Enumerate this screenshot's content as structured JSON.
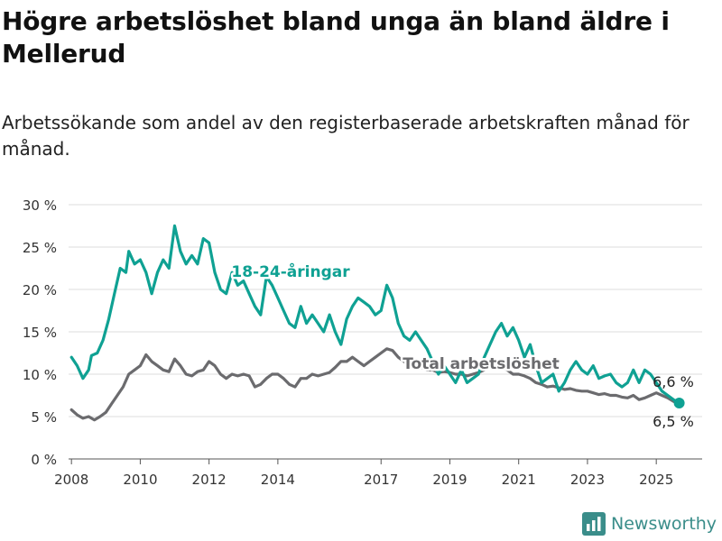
{
  "title": "Högre arbetslöshet bland unga än bland äldre i Mellerud",
  "subtitle": "Arbetssökande som andel av den registerbaserade arbetskraften månad för månad.",
  "brand": {
    "name": "Newsworthy",
    "logo_icon": "bar-chart-icon"
  },
  "colors": {
    "youth": "#0fa193",
    "total": "#6b6b6e",
    "grid": "#dcdcdc",
    "text": "#333333"
  },
  "chart_data": {
    "type": "line",
    "y_unit": "%",
    "ylim": [
      0,
      30
    ],
    "y_ticks": [
      0,
      5,
      10,
      15,
      20,
      25,
      30
    ],
    "y_tick_labels": [
      "0 %",
      "5 %",
      "10 %",
      "15 %",
      "20 %",
      "25 %",
      "30 %"
    ],
    "x_tick_labels": [
      "2008",
      "2010",
      "2012",
      "2014",
      "2017",
      "2019",
      "2021",
      "2023",
      "2025"
    ],
    "grid": true,
    "series": [
      {
        "name": "18-24-åringar",
        "last_value_label": "6,6 %",
        "points": [
          [
            "2008-01",
            12.0
          ],
          [
            "2008-03",
            11.0
          ],
          [
            "2008-05",
            9.5
          ],
          [
            "2008-07",
            10.5
          ],
          [
            "2008-08",
            12.2
          ],
          [
            "2008-10",
            12.5
          ],
          [
            "2008-12",
            14.0
          ],
          [
            "2009-02",
            16.5
          ],
          [
            "2009-04",
            19.5
          ],
          [
            "2009-06",
            22.5
          ],
          [
            "2009-08",
            22.0
          ],
          [
            "2009-09",
            24.5
          ],
          [
            "2009-11",
            23.0
          ],
          [
            "2010-01",
            23.5
          ],
          [
            "2010-03",
            22.0
          ],
          [
            "2010-05",
            19.5
          ],
          [
            "2010-07",
            22.0
          ],
          [
            "2010-09",
            23.5
          ],
          [
            "2010-11",
            22.5
          ],
          [
            "2011-01",
            27.5
          ],
          [
            "2011-03",
            24.5
          ],
          [
            "2011-05",
            23.0
          ],
          [
            "2011-07",
            24.0
          ],
          [
            "2011-09",
            23.0
          ],
          [
            "2011-11",
            26.0
          ],
          [
            "2012-01",
            25.5
          ],
          [
            "2012-03",
            22.0
          ],
          [
            "2012-05",
            20.0
          ],
          [
            "2012-07",
            19.5
          ],
          [
            "2012-09",
            22.0
          ],
          [
            "2012-11",
            20.5
          ],
          [
            "2013-01",
            21.0
          ],
          [
            "2013-03",
            19.5
          ],
          [
            "2013-05",
            18.0
          ],
          [
            "2013-07",
            17.0
          ],
          [
            "2013-09",
            21.5
          ],
          [
            "2013-11",
            20.5
          ],
          [
            "2014-01",
            19.0
          ],
          [
            "2014-03",
            17.5
          ],
          [
            "2014-05",
            16.0
          ],
          [
            "2014-07",
            15.5
          ],
          [
            "2014-09",
            18.0
          ],
          [
            "2014-11",
            16.0
          ],
          [
            "2015-01",
            17.0
          ],
          [
            "2015-03",
            16.0
          ],
          [
            "2015-05",
            15.0
          ],
          [
            "2015-07",
            17.0
          ],
          [
            "2015-09",
            15.0
          ],
          [
            "2015-11",
            13.5
          ],
          [
            "2016-01",
            16.5
          ],
          [
            "2016-03",
            18.0
          ],
          [
            "2016-05",
            19.0
          ],
          [
            "2016-07",
            18.5
          ],
          [
            "2016-09",
            18.0
          ],
          [
            "2016-11",
            17.0
          ],
          [
            "2017-01",
            17.5
          ],
          [
            "2017-03",
            20.5
          ],
          [
            "2017-05",
            19.0
          ],
          [
            "2017-07",
            16.0
          ],
          [
            "2017-09",
            14.5
          ],
          [
            "2017-11",
            14.0
          ],
          [
            "2018-01",
            15.0
          ],
          [
            "2018-03",
            14.0
          ],
          [
            "2018-05",
            13.0
          ],
          [
            "2018-07",
            11.5
          ],
          [
            "2018-09",
            10.0
          ],
          [
            "2018-11",
            11.0
          ],
          [
            "2019-01",
            10.0
          ],
          [
            "2019-03",
            9.0
          ],
          [
            "2019-05",
            10.5
          ],
          [
            "2019-07",
            9.0
          ],
          [
            "2019-09",
            9.5
          ],
          [
            "2019-11",
            10.0
          ],
          [
            "2020-01",
            12.0
          ],
          [
            "2020-03",
            13.5
          ],
          [
            "2020-05",
            15.0
          ],
          [
            "2020-07",
            16.0
          ],
          [
            "2020-09",
            14.5
          ],
          [
            "2020-11",
            15.5
          ],
          [
            "2021-01",
            14.0
          ],
          [
            "2021-03",
            12.0
          ],
          [
            "2021-05",
            13.5
          ],
          [
            "2021-07",
            11.0
          ],
          [
            "2021-09",
            9.0
          ],
          [
            "2021-11",
            9.5
          ],
          [
            "2022-01",
            10.0
          ],
          [
            "2022-03",
            8.0
          ],
          [
            "2022-05",
            9.0
          ],
          [
            "2022-07",
            10.5
          ],
          [
            "2022-09",
            11.5
          ],
          [
            "2022-11",
            10.5
          ],
          [
            "2023-01",
            10.0
          ],
          [
            "2023-03",
            11.0
          ],
          [
            "2023-05",
            9.5
          ],
          [
            "2023-07",
            9.8
          ],
          [
            "2023-09",
            10.0
          ],
          [
            "2023-11",
            9.0
          ],
          [
            "2024-01",
            8.5
          ],
          [
            "2024-03",
            9.0
          ],
          [
            "2024-05",
            10.5
          ],
          [
            "2024-07",
            9.0
          ],
          [
            "2024-09",
            10.5
          ],
          [
            "2024-11",
            10.0
          ],
          [
            "2025-01",
            9.0
          ],
          [
            "2025-03",
            8.0
          ],
          [
            "2025-05",
            7.5
          ],
          [
            "2025-07",
            7.0
          ],
          [
            "2025-09",
            6.6
          ]
        ]
      },
      {
        "name": "Total arbetslöshet",
        "last_value_label": "6,5 %",
        "points": [
          [
            "2008-01",
            5.8
          ],
          [
            "2008-03",
            5.2
          ],
          [
            "2008-05",
            4.8
          ],
          [
            "2008-07",
            5.0
          ],
          [
            "2008-09",
            4.6
          ],
          [
            "2008-11",
            5.0
          ],
          [
            "2009-01",
            5.5
          ],
          [
            "2009-03",
            6.5
          ],
          [
            "2009-05",
            7.5
          ],
          [
            "2009-07",
            8.5
          ],
          [
            "2009-09",
            10.0
          ],
          [
            "2009-11",
            10.5
          ],
          [
            "2010-01",
            11.0
          ],
          [
            "2010-03",
            12.3
          ],
          [
            "2010-05",
            11.5
          ],
          [
            "2010-07",
            11.0
          ],
          [
            "2010-09",
            10.5
          ],
          [
            "2010-11",
            10.3
          ],
          [
            "2011-01",
            11.8
          ],
          [
            "2011-03",
            11.0
          ],
          [
            "2011-05",
            10.0
          ],
          [
            "2011-07",
            9.8
          ],
          [
            "2011-09",
            10.3
          ],
          [
            "2011-11",
            10.5
          ],
          [
            "2012-01",
            11.5
          ],
          [
            "2012-03",
            11.0
          ],
          [
            "2012-05",
            10.0
          ],
          [
            "2012-07",
            9.5
          ],
          [
            "2012-09",
            10.0
          ],
          [
            "2012-11",
            9.8
          ],
          [
            "2013-01",
            10.0
          ],
          [
            "2013-03",
            9.8
          ],
          [
            "2013-05",
            8.5
          ],
          [
            "2013-07",
            8.8
          ],
          [
            "2013-09",
            9.5
          ],
          [
            "2013-11",
            10.0
          ],
          [
            "2014-01",
            10.0
          ],
          [
            "2014-03",
            9.5
          ],
          [
            "2014-05",
            8.8
          ],
          [
            "2014-07",
            8.5
          ],
          [
            "2014-09",
            9.5
          ],
          [
            "2014-11",
            9.5
          ],
          [
            "2015-01",
            10.0
          ],
          [
            "2015-03",
            9.8
          ],
          [
            "2015-05",
            10.0
          ],
          [
            "2015-07",
            10.2
          ],
          [
            "2015-09",
            10.8
          ],
          [
            "2015-11",
            11.5
          ],
          [
            "2016-01",
            11.5
          ],
          [
            "2016-03",
            12.0
          ],
          [
            "2016-05",
            11.5
          ],
          [
            "2016-07",
            11.0
          ],
          [
            "2016-09",
            11.5
          ],
          [
            "2016-11",
            12.0
          ],
          [
            "2017-01",
            12.5
          ],
          [
            "2017-03",
            13.0
          ],
          [
            "2017-05",
            12.8
          ],
          [
            "2017-07",
            12.0
          ],
          [
            "2017-09",
            11.5
          ],
          [
            "2017-11",
            11.0
          ],
          [
            "2018-01",
            11.2
          ],
          [
            "2018-03",
            10.8
          ],
          [
            "2018-05",
            10.5
          ],
          [
            "2018-07",
            10.5
          ],
          [
            "2018-09",
            10.2
          ],
          [
            "2018-11",
            10.3
          ],
          [
            "2019-01",
            10.2
          ],
          [
            "2019-03",
            10.0
          ],
          [
            "2019-05",
            10.0
          ],
          [
            "2019-07",
            9.8
          ],
          [
            "2019-09",
            10.0
          ],
          [
            "2019-11",
            10.2
          ],
          [
            "2020-01",
            10.5
          ],
          [
            "2020-03",
            11.0
          ],
          [
            "2020-05",
            11.5
          ],
          [
            "2020-07",
            11.0
          ],
          [
            "2020-09",
            10.5
          ],
          [
            "2020-11",
            10.0
          ],
          [
            "2021-01",
            10.0
          ],
          [
            "2021-03",
            9.8
          ],
          [
            "2021-05",
            9.5
          ],
          [
            "2021-07",
            9.0
          ],
          [
            "2021-09",
            8.8
          ],
          [
            "2021-11",
            8.5
          ],
          [
            "2022-01",
            8.6
          ],
          [
            "2022-03",
            8.4
          ],
          [
            "2022-05",
            8.2
          ],
          [
            "2022-07",
            8.3
          ],
          [
            "2022-09",
            8.1
          ],
          [
            "2022-11",
            8.0
          ],
          [
            "2023-01",
            8.0
          ],
          [
            "2023-03",
            7.8
          ],
          [
            "2023-05",
            7.6
          ],
          [
            "2023-07",
            7.7
          ],
          [
            "2023-09",
            7.5
          ],
          [
            "2023-11",
            7.5
          ],
          [
            "2024-01",
            7.3
          ],
          [
            "2024-03",
            7.2
          ],
          [
            "2024-05",
            7.5
          ],
          [
            "2024-07",
            7.0
          ],
          [
            "2024-09",
            7.2
          ],
          [
            "2024-11",
            7.5
          ],
          [
            "2025-01",
            7.8
          ],
          [
            "2025-03",
            7.5
          ],
          [
            "2025-05",
            7.2
          ],
          [
            "2025-07",
            6.8
          ],
          [
            "2025-09",
            6.5
          ]
        ]
      }
    ]
  }
}
